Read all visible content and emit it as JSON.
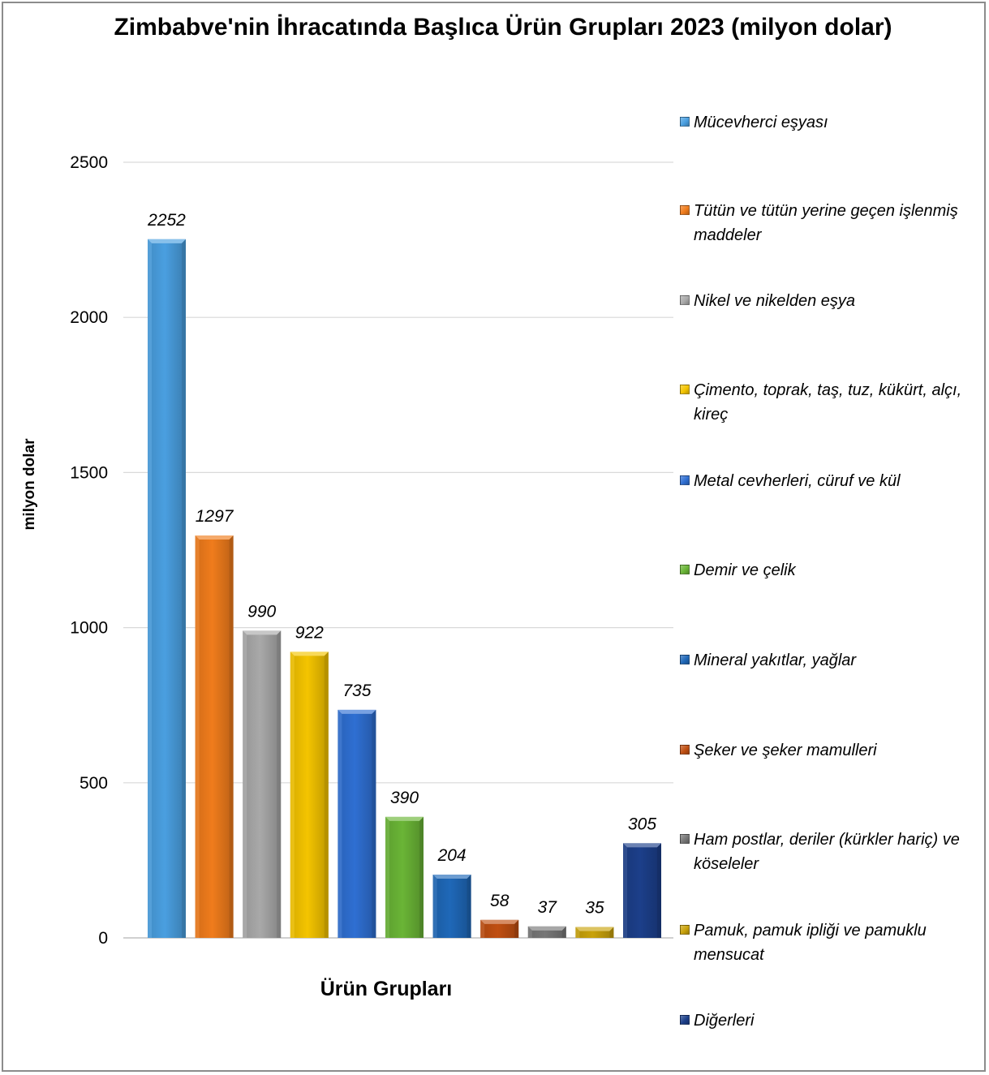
{
  "chart_data": {
    "type": "bar",
    "title": "Zimbabve'nin İhracatında Başlıca Ürün Grupları 2023 (milyon dolar)",
    "xlabel": "Ürün Grupları",
    "ylabel": "milyon dolar",
    "ylim": [
      0,
      2500
    ],
    "yticks": [
      0,
      500,
      1000,
      1500,
      2000,
      2500
    ],
    "grid": true,
    "legend_position": "right",
    "categories": [
      "Mücevherci eşyası",
      "Tütün ve tütün yerine geçen işlenmiş maddeler",
      "Nikel ve nikelden eşya",
      "Çimento, toprak, taş, tuz, kükürt, alçı, kireç",
      "Metal cevherleri, cüruf ve kül",
      "Demir ve çelik",
      "Mineral yakıtlar, yağlar",
      "Şeker ve şeker mamulleri",
      "Ham postlar, deriler (kürkler hariç) ve köseleler",
      "Pamuk, pamuk ipliği ve pamuklu mensucat",
      "Diğerleri"
    ],
    "values": [
      2252,
      1297,
      990,
      922,
      735,
      390,
      204,
      58,
      37,
      35,
      305
    ],
    "colors": [
      "#4a9fe0",
      "#f07c1c",
      "#a9a9a9",
      "#f4c400",
      "#2f6fd2",
      "#6ab536",
      "#1f68b8",
      "#c04f12",
      "#777777",
      "#c9a20b",
      "#1c3f8a"
    ]
  }
}
